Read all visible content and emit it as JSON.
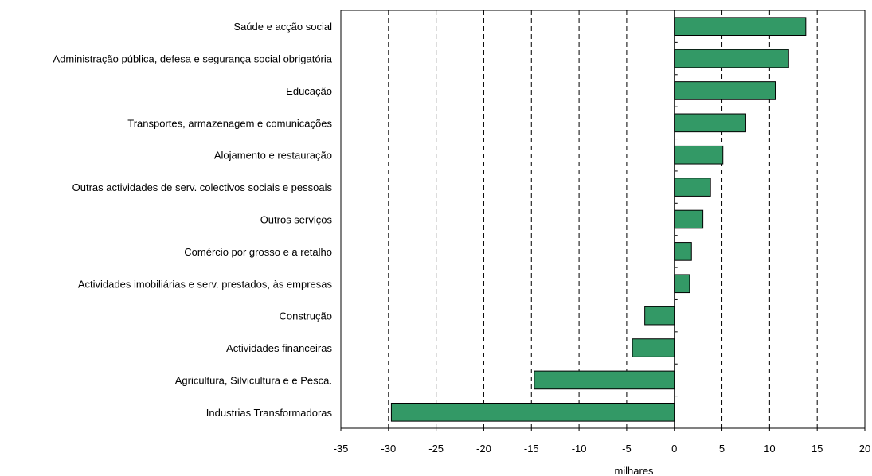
{
  "chart_data": {
    "type": "bar",
    "orientation": "horizontal",
    "categories": [
      "Saúde e acção social",
      "Administração pública, defesa e segurança social obrigatória",
      "Educação",
      "Transportes, armazenagem e comunicações",
      "Alojamento e restauração",
      "Outras actividades de serv. colectivos sociais e pessoais",
      "Outros serviços",
      "Comércio por grosso e a retalho",
      "Actividades imobiliárias e serv. prestados, às empresas",
      "Construção",
      "Actividades financeiras",
      "Agricultura, Silvicultura e e Pesca.",
      "Industrias Transformadoras"
    ],
    "values": [
      13.8,
      12.0,
      10.6,
      7.5,
      5.1,
      3.8,
      3.0,
      1.8,
      1.6,
      -3.1,
      -4.4,
      -14.7,
      -29.7
    ],
    "xlabel": "milhares",
    "ylabel": "",
    "title": "",
    "xlim": [
      -35,
      20
    ],
    "xticks": [
      -35,
      -30,
      -25,
      -20,
      -15,
      -10,
      -5,
      0,
      5,
      10,
      15,
      20
    ],
    "grid": "vertical dashed",
    "legend": "none",
    "bar_color": "#339966"
  }
}
